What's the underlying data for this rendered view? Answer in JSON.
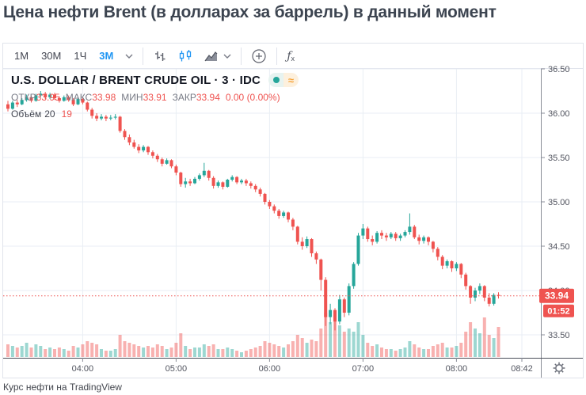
{
  "page": {
    "title": "Цена нефти Brent (в долларах за баррель) в данный момент",
    "attribution": "Курс нефти на TradingView"
  },
  "toolbar": {
    "accent_color": "#2196f3",
    "intervals": [
      {
        "label": "1М",
        "active": false
      },
      {
        "label": "30М",
        "active": false
      },
      {
        "label": "1Ч",
        "active": false
      },
      {
        "label": "3М",
        "active": true
      }
    ],
    "style_icons": [
      "bars",
      "candles",
      "area"
    ],
    "active_style": "candles",
    "indicators_label": "ƒx"
  },
  "legend": {
    "symbol_title": "U.S. DOLLAR / BRENT CRUDE OIL · 3 · IDC",
    "approx_symbol": "≈",
    "ohlc": [
      {
        "label": "ОТКР",
        "value": "33.95"
      },
      {
        "label": "МАКС",
        "value": "33.98"
      },
      {
        "label": "МИН",
        "value": "33.91"
      },
      {
        "label": "ЗАКР",
        "value": "33.94"
      }
    ],
    "change": "0.00 (0.00%)",
    "volume_label": "Объём",
    "volume_ma": "20",
    "volume_value": "19"
  },
  "chart_data": {
    "type": "candlestick",
    "title": "U.S. DOLLAR / BRENT CRUDE OIL, 3 min, IDC",
    "interval_minutes": 3,
    "start_time": "03:12",
    "y_ticks": [
      36.5,
      36.0,
      35.5,
      35.0,
      34.5,
      34.0,
      33.5
    ],
    "ylim": [
      33.3,
      36.5
    ],
    "x_labels": [
      "04:00",
      "05:00",
      "06:00",
      "07:00",
      "08:00",
      "08:42"
    ],
    "grid": true,
    "last_price": "33.94",
    "countdown": "01:52",
    "colors": {
      "up": "#26a69a",
      "down": "#ef5350",
      "vol_up": "rgba(38,166,154,0.45)",
      "vol_down": "rgba(239,83,80,0.45)",
      "grid": "#e9eef4",
      "axis_text": "#50535e",
      "axis_line": "#8a8e98",
      "bottom_line": "#4a4e59",
      "price_line": "#ef5350",
      "label_bg": "#ef5350",
      "label_text": "#ffffff"
    },
    "candles": [
      [
        36.1,
        36.14,
        36.02,
        36.05,
        8
      ],
      [
        36.05,
        36.14,
        36.04,
        36.12,
        7
      ],
      [
        36.12,
        36.15,
        36.07,
        36.1,
        6
      ],
      [
        36.1,
        36.17,
        36.09,
        36.15,
        7
      ],
      [
        36.15,
        36.21,
        36.13,
        36.18,
        9
      ],
      [
        36.18,
        36.2,
        36.12,
        36.14,
        6
      ],
      [
        36.14,
        36.22,
        36.13,
        36.2,
        8
      ],
      [
        36.2,
        36.25,
        36.18,
        36.22,
        7
      ],
      [
        36.22,
        36.24,
        36.16,
        36.18,
        5
      ],
      [
        36.18,
        36.23,
        36.16,
        36.21,
        6
      ],
      [
        36.21,
        36.23,
        36.15,
        36.17,
        5
      ],
      [
        36.17,
        36.19,
        36.12,
        36.14,
        6
      ],
      [
        36.14,
        36.2,
        36.13,
        36.18,
        5
      ],
      [
        36.18,
        36.2,
        36.13,
        36.15,
        4
      ],
      [
        36.15,
        36.17,
        36.08,
        36.1,
        7
      ],
      [
        36.1,
        36.18,
        36.09,
        36.16,
        6
      ],
      [
        36.16,
        36.18,
        36.1,
        36.12,
        8
      ],
      [
        36.12,
        36.13,
        36.02,
        36.04,
        10
      ],
      [
        36.04,
        36.06,
        35.94,
        35.97,
        9
      ],
      [
        35.97,
        36.0,
        35.91,
        35.94,
        8
      ],
      [
        35.94,
        35.99,
        35.92,
        35.96,
        5
      ],
      [
        35.96,
        35.98,
        35.91,
        35.94,
        4
      ],
      [
        35.94,
        35.98,
        35.92,
        35.95,
        4
      ],
      [
        35.95,
        35.99,
        35.93,
        35.96,
        5
      ],
      [
        35.96,
        35.97,
        35.78,
        35.8,
        14
      ],
      [
        35.8,
        35.82,
        35.7,
        35.73,
        10
      ],
      [
        35.73,
        35.76,
        35.64,
        35.67,
        9
      ],
      [
        35.67,
        35.7,
        35.6,
        35.62,
        8
      ],
      [
        35.62,
        35.65,
        35.55,
        35.58,
        7
      ],
      [
        35.58,
        35.64,
        35.56,
        35.62,
        6
      ],
      [
        35.62,
        35.63,
        35.53,
        35.56,
        7
      ],
      [
        35.56,
        35.58,
        35.49,
        35.52,
        6
      ],
      [
        35.52,
        35.54,
        35.45,
        35.48,
        8
      ],
      [
        35.48,
        35.5,
        35.4,
        35.43,
        7
      ],
      [
        35.43,
        35.49,
        35.42,
        35.47,
        5
      ],
      [
        35.47,
        35.48,
        35.38,
        35.4,
        6
      ],
      [
        35.4,
        35.42,
        35.3,
        35.33,
        9
      ],
      [
        35.33,
        35.34,
        35.17,
        35.2,
        15
      ],
      [
        35.2,
        35.27,
        35.16,
        35.23,
        7
      ],
      [
        35.23,
        35.26,
        35.18,
        35.21,
        5
      ],
      [
        35.21,
        35.28,
        35.2,
        35.26,
        6
      ],
      [
        35.26,
        35.32,
        35.24,
        35.3,
        6
      ],
      [
        35.3,
        35.44,
        35.28,
        35.35,
        8
      ],
      [
        35.35,
        35.36,
        35.24,
        35.27,
        7
      ],
      [
        35.27,
        35.29,
        35.15,
        35.18,
        8
      ],
      [
        35.18,
        35.24,
        35.16,
        35.22,
        5
      ],
      [
        35.22,
        35.23,
        35.14,
        35.17,
        5
      ],
      [
        35.17,
        35.26,
        35.16,
        35.25,
        6
      ],
      [
        35.25,
        35.3,
        35.23,
        35.28,
        5
      ],
      [
        35.28,
        35.29,
        35.2,
        35.22,
        4
      ],
      [
        35.22,
        35.26,
        35.2,
        35.24,
        3
      ],
      [
        35.24,
        35.26,
        35.18,
        35.21,
        4
      ],
      [
        35.21,
        35.23,
        35.15,
        35.18,
        5
      ],
      [
        35.18,
        35.2,
        35.11,
        35.14,
        6
      ],
      [
        35.14,
        35.16,
        35.06,
        35.09,
        7
      ],
      [
        35.09,
        35.1,
        34.97,
        35.0,
        10
      ],
      [
        35.0,
        35.02,
        34.92,
        34.95,
        9
      ],
      [
        34.95,
        34.97,
        34.87,
        34.9,
        8
      ],
      [
        34.9,
        34.92,
        34.81,
        34.84,
        7
      ],
      [
        34.84,
        34.9,
        34.82,
        34.88,
        6
      ],
      [
        34.88,
        34.89,
        34.77,
        34.8,
        8
      ],
      [
        34.8,
        34.82,
        34.68,
        34.72,
        10
      ],
      [
        34.72,
        34.73,
        34.52,
        34.55,
        14
      ],
      [
        34.55,
        34.6,
        34.46,
        34.5,
        12
      ],
      [
        34.5,
        34.61,
        34.48,
        34.58,
        9
      ],
      [
        34.58,
        34.59,
        34.38,
        34.42,
        11
      ],
      [
        34.42,
        34.44,
        34.3,
        34.35,
        10
      ],
      [
        34.35,
        34.36,
        34.0,
        34.12,
        18
      ],
      [
        34.12,
        34.15,
        33.6,
        33.7,
        28
      ],
      [
        33.7,
        33.85,
        33.62,
        33.78,
        22
      ],
      [
        33.78,
        33.8,
        33.55,
        33.65,
        25
      ],
      [
        33.65,
        33.95,
        33.62,
        33.9,
        20
      ],
      [
        33.9,
        33.92,
        33.7,
        33.75,
        16
      ],
      [
        33.75,
        34.08,
        33.72,
        34.05,
        18
      ],
      [
        34.05,
        34.32,
        34.02,
        34.3,
        16
      ],
      [
        34.3,
        34.65,
        34.28,
        34.62,
        22
      ],
      [
        34.62,
        34.75,
        34.58,
        34.7,
        14
      ],
      [
        34.7,
        34.72,
        34.55,
        34.58,
        9
      ],
      [
        34.58,
        34.62,
        34.51,
        34.55,
        7
      ],
      [
        34.55,
        34.67,
        34.53,
        34.65,
        8
      ],
      [
        34.65,
        34.68,
        34.58,
        34.62,
        6
      ],
      [
        34.62,
        34.65,
        34.56,
        34.6,
        5
      ],
      [
        34.6,
        34.66,
        34.58,
        34.64,
        5
      ],
      [
        34.64,
        34.66,
        34.56,
        34.59,
        4
      ],
      [
        34.59,
        34.64,
        34.56,
        34.62,
        5
      ],
      [
        34.62,
        34.68,
        34.6,
        34.66,
        6
      ],
      [
        34.66,
        34.87,
        34.63,
        34.72,
        10
      ],
      [
        34.72,
        34.74,
        34.58,
        34.6,
        8
      ],
      [
        34.6,
        34.63,
        34.52,
        34.56,
        6
      ],
      [
        34.56,
        34.62,
        34.53,
        34.6,
        5
      ],
      [
        34.6,
        34.61,
        34.51,
        34.55,
        5
      ],
      [
        34.55,
        34.56,
        34.43,
        34.47,
        7
      ],
      [
        34.47,
        34.49,
        34.34,
        34.38,
        8
      ],
      [
        34.38,
        34.4,
        34.24,
        34.28,
        9
      ],
      [
        34.28,
        34.35,
        34.25,
        34.33,
        6
      ],
      [
        34.33,
        34.34,
        34.21,
        34.25,
        6
      ],
      [
        34.25,
        34.32,
        34.22,
        34.3,
        7
      ],
      [
        34.3,
        34.31,
        34.14,
        34.18,
        9
      ],
      [
        34.18,
        34.2,
        34.01,
        34.05,
        16
      ],
      [
        34.05,
        34.06,
        33.85,
        33.92,
        22
      ],
      [
        33.92,
        34.03,
        33.88,
        34.0,
        18
      ],
      [
        34.0,
        34.08,
        33.96,
        34.05,
        15
      ],
      [
        34.05,
        34.06,
        33.88,
        33.92,
        25
      ],
      [
        33.92,
        33.97,
        33.82,
        33.85,
        14
      ],
      [
        33.85,
        33.97,
        33.83,
        33.95,
        12
      ],
      [
        33.95,
        33.98,
        33.91,
        33.94,
        19
      ]
    ]
  }
}
